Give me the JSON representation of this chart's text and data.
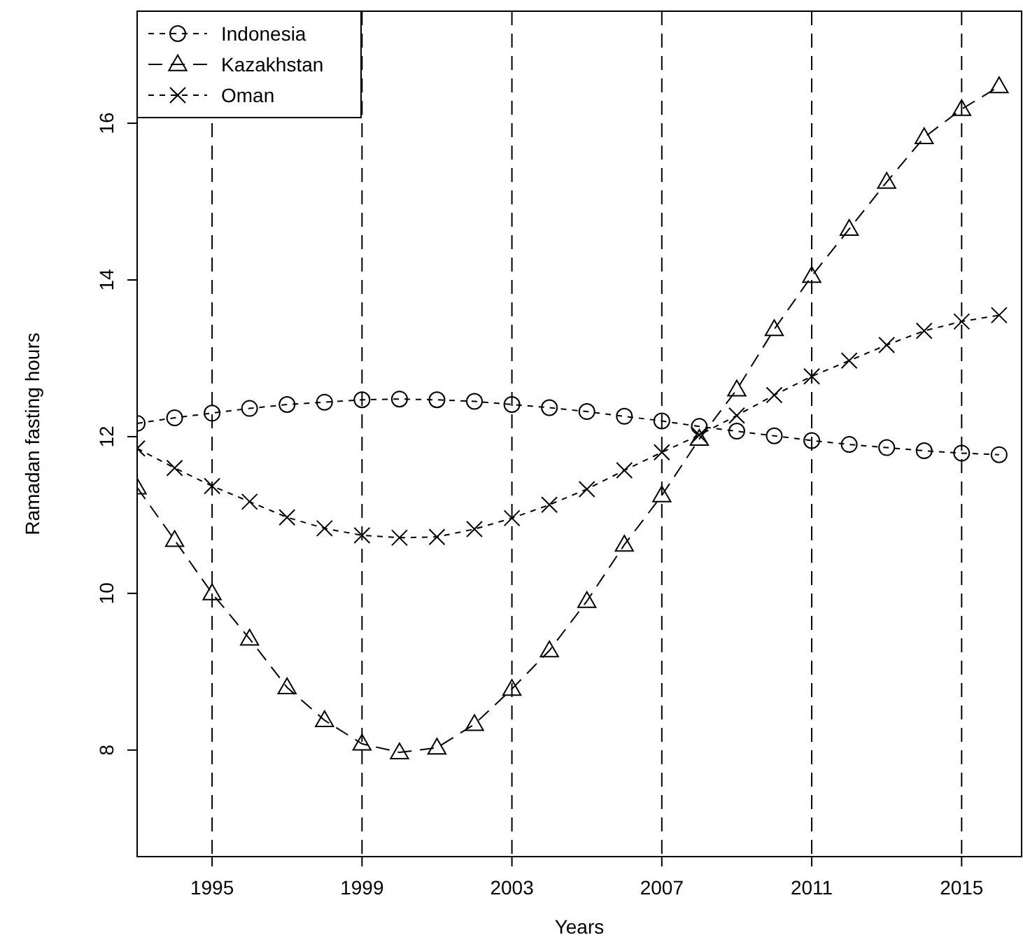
{
  "chart_data": {
    "type": "line",
    "xlabel": "Years",
    "ylabel": "Ramadan fasting hours",
    "x": [
      1993,
      1994,
      1995,
      1996,
      1997,
      1998,
      1999,
      2000,
      2001,
      2002,
      2003,
      2004,
      2005,
      2006,
      2007,
      2008,
      2009,
      2010,
      2011,
      2012,
      2013,
      2014,
      2015,
      2016
    ],
    "series": [
      {
        "name": "Indonesia",
        "color": "#000000",
        "marker": "circle",
        "line_style": "dotted",
        "values": [
          12.17,
          12.24,
          12.3,
          12.36,
          12.41,
          12.44,
          12.47,
          12.48,
          12.47,
          12.45,
          12.41,
          12.37,
          12.32,
          12.26,
          12.2,
          12.13,
          12.07,
          12.01,
          11.95,
          11.9,
          11.86,
          11.82,
          11.79,
          11.77
        ]
      },
      {
        "name": "Kazakhstan",
        "color": "#000000",
        "marker": "triangle",
        "line_style": "dashed",
        "values": [
          11.35,
          10.68,
          10.0,
          9.42,
          8.8,
          8.38,
          8.08,
          7.97,
          8.03,
          8.33,
          8.78,
          9.27,
          9.9,
          10.62,
          11.25,
          11.97,
          12.6,
          13.37,
          14.05,
          14.65,
          15.25,
          15.82,
          16.18,
          16.47
        ]
      },
      {
        "name": "Oman",
        "color": "#000000",
        "marker": "cross",
        "line_style": "dotted",
        "values": [
          11.85,
          11.6,
          11.37,
          11.17,
          10.97,
          10.83,
          10.74,
          10.71,
          10.72,
          10.82,
          10.96,
          11.13,
          11.33,
          11.57,
          11.8,
          12.02,
          12.27,
          12.53,
          12.77,
          12.97,
          13.17,
          13.35,
          13.47,
          13.55
        ]
      }
    ],
    "xlim": [
      1993,
      2016.6
    ],
    "ylim": [
      6.64,
      17.43
    ],
    "xticks": [
      1995,
      1999,
      2003,
      2007,
      2011,
      2015
    ],
    "yticks": [
      8,
      10,
      12,
      14,
      16
    ],
    "ref_lines": [
      {
        "axis": "x",
        "value": 1995,
        "color": "#000000",
        "line_style": "dashed"
      },
      {
        "axis": "x",
        "value": 1999,
        "color": "#000000",
        "line_style": "dashed"
      },
      {
        "axis": "x",
        "value": 2003,
        "color": "#000000",
        "line_style": "dashed"
      },
      {
        "axis": "x",
        "value": 2007,
        "color": "#000000",
        "line_style": "dashed"
      },
      {
        "axis": "x",
        "value": 2011,
        "color": "#000000",
        "line_style": "dashed"
      },
      {
        "axis": "x",
        "value": 2015,
        "color": "#000000",
        "line_style": "dashed"
      }
    ],
    "grid": false,
    "legend": "top left"
  }
}
